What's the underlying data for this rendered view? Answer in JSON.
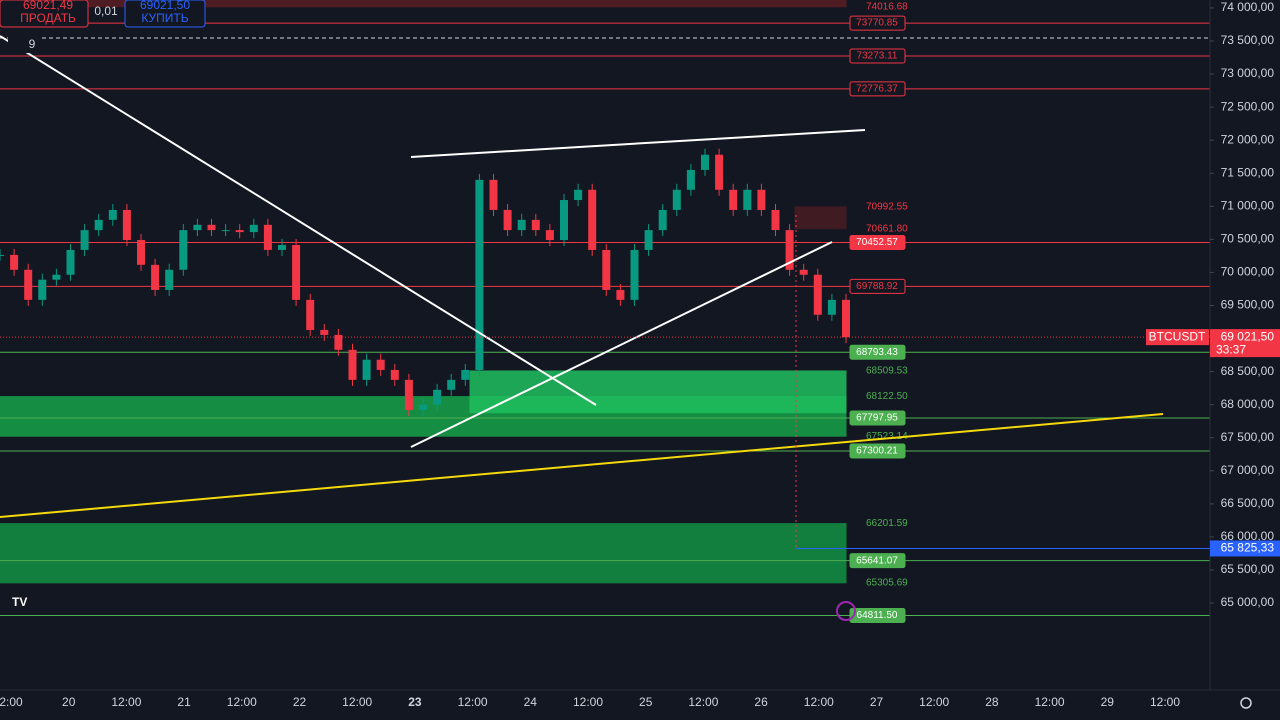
{
  "chart_data": {
    "type": "candlestick",
    "symbol": "BTCUSDT",
    "ylim": [
      63700,
      74120
    ],
    "yticks": [
      {
        "value": 74000,
        "label": "74 000,00"
      },
      {
        "value": 73500,
        "label": "73 500,00"
      },
      {
        "value": 73000,
        "label": "73 000,00"
      },
      {
        "value": 72500,
        "label": "72 500,00"
      },
      {
        "value": 72000,
        "label": "72 000,00"
      },
      {
        "value": 71500,
        "label": "71 500,00"
      },
      {
        "value": 71000,
        "label": "71 000,00"
      },
      {
        "value": 70500,
        "label": "70 500,00"
      },
      {
        "value": 70000,
        "label": "70 000,00"
      },
      {
        "value": 69500,
        "label": "69 500,00"
      },
      {
        "value": 69000,
        "label": "69 000,00"
      },
      {
        "value": 68500,
        "label": "68 500,00"
      },
      {
        "value": 68000,
        "label": "68 000,00"
      },
      {
        "value": 67500,
        "label": "67 500,00"
      },
      {
        "value": 67000,
        "label": "67 000,00"
      },
      {
        "value": 66500,
        "label": "66 500,00"
      },
      {
        "value": 66000,
        "label": "66 000,00"
      },
      {
        "value": 65500,
        "label": "65 500,00"
      },
      {
        "value": 65000,
        "label": "65 000,00"
      }
    ],
    "time_labels": [
      "2:00",
      "20",
      "12:00",
      "21",
      "12:00",
      "22",
      "12:00",
      "23",
      "12:00",
      "24",
      "12:00",
      "25",
      "12:00",
      "26",
      "12:00",
      "27",
      "12:00",
      "28",
      "12:00",
      "29",
      "12:00"
    ],
    "prices": [
      70265,
      70040,
      69585,
      69890,
      69965,
      70340,
      70640,
      70795,
      70945,
      70490,
      70115,
      69735,
      70040,
      70640,
      70720,
      70640,
      70640,
      70610,
      70720,
      70340,
      70415,
      69585,
      69130,
      69055,
      68830,
      68375,
      68680,
      68525,
      68375,
      67920,
      68000,
      68225,
      68375,
      68525,
      71400,
      70945,
      70640,
      70795,
      70640,
      70490,
      71095,
      71250,
      70340,
      69735,
      69585,
      70340,
      70640,
      70945,
      71250,
      71550,
      71780,
      71250,
      70945,
      71250,
      70945,
      70640,
      70040,
      69965,
      69360,
      69585,
      69021.5
    ],
    "up_color": "#089981",
    "down_color": "#f23645",
    "levels": [
      {
        "value": 73770.85,
        "label": "73770.85",
        "color": "#f23645",
        "filled": false
      },
      {
        "value": 73273.11,
        "label": "73273.11",
        "color": "#f23645",
        "filled": false
      },
      {
        "value": 72776.37,
        "label": "72776.37",
        "color": "#f23645",
        "filled": false
      },
      {
        "value": 70452.57,
        "label": "70452.57",
        "color": "#f23645",
        "filled": true
      },
      {
        "value": 69788.92,
        "label": "69788.92",
        "color": "#f23645",
        "filled": false
      },
      {
        "value": 68793.43,
        "label": "68793.43",
        "color": "#4caf50",
        "filled": true
      },
      {
        "value": 67797.95,
        "label": "67797.95",
        "color": "#4caf50",
        "filled": true
      },
      {
        "value": 67300.21,
        "label": "67300.21",
        "color": "#4caf50",
        "filled": true
      },
      {
        "value": 65641.07,
        "label": "65641.07",
        "color": "#4caf50",
        "filled": true
      },
      {
        "value": 64811.5,
        "label": "64811.50",
        "color": "#4caf50",
        "filled": true
      }
    ],
    "zones": [
      {
        "top": 74200,
        "bottom": {
          "value": 74016.68,
          "label": "74016.68"
        },
        "color": "#5a1d24"
      },
      {
        "top": {
          "value": 70992.55,
          "label": "70992.55"
        },
        "bottom": {
          "value": 70661.8,
          "label": "70661.80"
        },
        "color": "#4a1c22"
      },
      {
        "top": {
          "value": 68122.5,
          "label": "68122.50"
        },
        "bottom": {
          "value": 67523.14,
          "label": "67523.14"
        },
        "color": "#16a34a"
      },
      {
        "top": {
          "value": 68509.53,
          "label": "68509.53"
        },
        "bottom": 67878,
        "color": "#1fbf5f"
      },
      {
        "top": {
          "value": 66201.59,
          "label": "66201.59"
        },
        "bottom": {
          "value": 65305.69,
          "label": "65305.69"
        },
        "color": "#149245"
      }
    ],
    "last_price": {
      "value": 69021.5,
      "label": "69 021,50"
    },
    "countdown": "33:37",
    "marker": {
      "value": 65825.33,
      "label": "65 825,33"
    }
  },
  "toolbar": {
    "sell_price": "69021,49",
    "sell_label": "ПРОДАТЬ",
    "spread": "0,01",
    "buy_price": "69021,50",
    "buy_label": "КУПИТЬ",
    "indicators": "9"
  }
}
